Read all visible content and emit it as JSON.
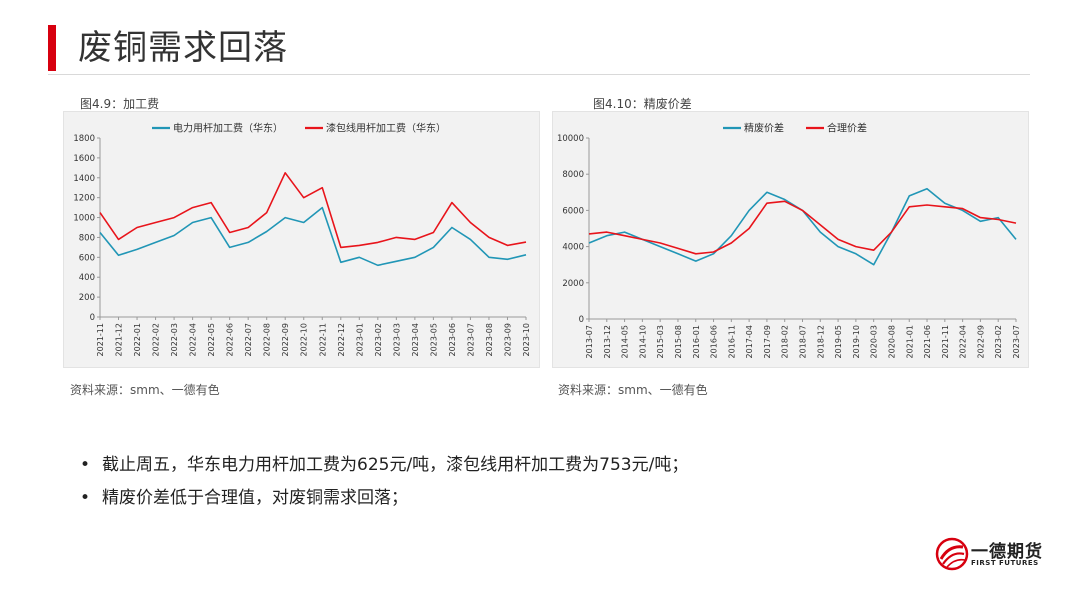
{
  "page": {
    "title": "废铜需求回落"
  },
  "charts": [
    {
      "fig_label": "图4.9：加工费",
      "source": "资料来源：smm、一德有色"
    },
    {
      "fig_label": "图4.10：精废价差",
      "source": "资料来源：smm、一德有色"
    }
  ],
  "bullets": [
    "截止周五，华东电力用杆加工费为625元/吨，漆包线用杆加工费为753元/吨；",
    "精废价差低于合理值，对废铜需求回落；"
  ],
  "logo": {
    "cn": "一德期货",
    "en": "FIRST FUTURES"
  },
  "colors": {
    "accent": "#d7000f",
    "blue": "#2196b6",
    "red": "#e8141b"
  },
  "chart_data": [
    {
      "type": "line",
      "title": "",
      "xlabel": "",
      "ylabel": "",
      "ylim": [
        0,
        1800
      ],
      "yticks": [
        0,
        200,
        400,
        600,
        800,
        1000,
        1200,
        1400,
        1600,
        1800
      ],
      "categories": [
        "2021-11",
        "2021-12",
        "2022-01",
        "2022-02",
        "2022-03",
        "2022-04",
        "2022-05",
        "2022-06",
        "2022-07",
        "2022-08",
        "2022-09",
        "2022-10",
        "2022-11",
        "2022-12",
        "2023-01",
        "2023-02",
        "2023-03",
        "2023-04",
        "2023-05",
        "2023-06",
        "2023-07",
        "2023-08",
        "2023-09",
        "2023-10"
      ],
      "legend_position": "top",
      "grid": false,
      "series": [
        {
          "name": "电力用杆加工费（华东）",
          "color": "#2196b6",
          "values": [
            850,
            620,
            680,
            750,
            820,
            950,
            1000,
            700,
            750,
            860,
            1000,
            950,
            1100,
            550,
            600,
            520,
            560,
            600,
            700,
            900,
            780,
            600,
            580,
            625
          ]
        },
        {
          "name": "漆包线用杆加工费（华东）",
          "color": "#e8141b",
          "values": [
            1050,
            780,
            900,
            950,
            1000,
            1100,
            1150,
            850,
            900,
            1050,
            1450,
            1200,
            1300,
            700,
            720,
            750,
            800,
            780,
            850,
            1150,
            950,
            800,
            720,
            753
          ]
        }
      ]
    },
    {
      "type": "line",
      "title": "",
      "xlabel": "",
      "ylabel": "",
      "ylim": [
        0,
        10000
      ],
      "yticks": [
        0,
        2000,
        4000,
        6000,
        8000,
        10000
      ],
      "categories": [
        "2013-07",
        "2013-12",
        "2014-05",
        "2014-10",
        "2015-03",
        "2015-08",
        "2016-01",
        "2016-06",
        "2016-11",
        "2017-04",
        "2017-09",
        "2018-02",
        "2018-07",
        "2018-12",
        "2019-05",
        "2019-10",
        "2020-03",
        "2020-08",
        "2021-01",
        "2021-06",
        "2021-11",
        "2022-04",
        "2022-09",
        "2023-02",
        "2023-07"
      ],
      "legend_position": "top",
      "grid": false,
      "series": [
        {
          "name": "精废价差",
          "color": "#2196b6",
          "values": [
            4200,
            4600,
            4800,
            4400,
            4000,
            3600,
            3200,
            3600,
            4600,
            6000,
            7000,
            6600,
            6000,
            4800,
            4000,
            3600,
            3000,
            4800,
            6800,
            7200,
            6400,
            6000,
            5400,
            5600,
            4400
          ]
        },
        {
          "name": "合理价差",
          "color": "#e8141b",
          "values": [
            4700,
            4800,
            4600,
            4400,
            4200,
            3900,
            3600,
            3700,
            4200,
            5000,
            6400,
            6500,
            6000,
            5200,
            4400,
            4000,
            3800,
            4800,
            6200,
            6300,
            6200,
            6100,
            5600,
            5500,
            5300
          ]
        }
      ]
    }
  ]
}
